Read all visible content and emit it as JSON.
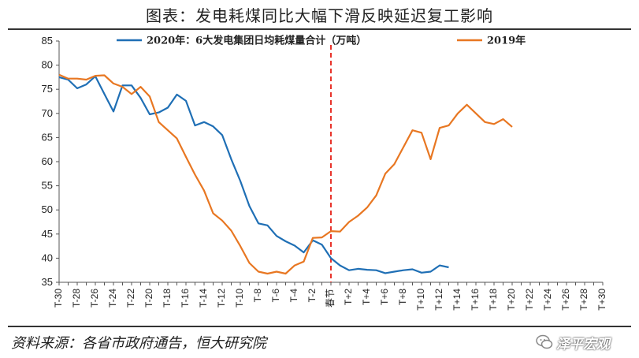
{
  "header": {
    "title": "图表：发电耗煤同比大幅下滑反映延迟复工影响"
  },
  "footer": {
    "source": "资料来源：各省市政府通告，恒大研究院",
    "watermark": "泽平宏观"
  },
  "colors": {
    "series_2020": "#1f6fb5",
    "series_2019": "#e87722",
    "marker": "#e8342b",
    "axis": "#555555"
  },
  "chart_data": {
    "type": "line",
    "ylim": [
      35,
      85
    ],
    "yticks": [
      35,
      40,
      45,
      50,
      55,
      60,
      65,
      70,
      75,
      80,
      85
    ],
    "grid": false,
    "legend_placement": "top",
    "x": [
      "T-30",
      "T-29",
      "T-28",
      "T-27",
      "T-26",
      "T-25",
      "T-24",
      "T-23",
      "T-22",
      "T-21",
      "T-20",
      "T-19",
      "T-18",
      "T-17",
      "T-16",
      "T-15",
      "T-14",
      "T-13",
      "T-12",
      "T-11",
      "T-10",
      "T-9",
      "T-8",
      "T-7",
      "T-6",
      "T-5",
      "T-4",
      "T-3",
      "T-2",
      "T-1",
      "春节",
      "T+1",
      "T+2",
      "T+3",
      "T+4",
      "T+5",
      "T+6",
      "T+7",
      "T+8",
      "T+9",
      "T+10",
      "T+11",
      "T+12",
      "T+13",
      "T+14",
      "T+15",
      "T+16",
      "T+17",
      "T+18",
      "T+19",
      "T+20",
      "T+21",
      "T+22",
      "T+23",
      "T+24",
      "T+25",
      "T+26",
      "T+27",
      "T+28",
      "T+29",
      "T+30"
    ],
    "xtick_labels": [
      "T-30",
      "T-28",
      "T-26",
      "T-24",
      "T-22",
      "T-20",
      "T-18",
      "T-16",
      "T-14",
      "T-12",
      "T-10",
      "T-8",
      "T-6",
      "T-4",
      "T-2",
      "春节",
      "T+2",
      "T+4",
      "T+6",
      "T+8",
      "T+10",
      "T+12",
      "T+14",
      "T+16",
      "T+18",
      "T+20",
      "T+22",
      "T+24",
      "T+26",
      "T+28",
      "T+30"
    ],
    "marker_category": "春节",
    "series": [
      {
        "name": "2020年：6大发电集团日均耗煤量合计（万吨）",
        "color": "#1f6fb5",
        "values": [
          77.5,
          77,
          75.2,
          76,
          77.7,
          74,
          70.4,
          75.8,
          75.8,
          73.2,
          69.8,
          70.2,
          71.2,
          73.9,
          72.6,
          67.5,
          68.2,
          67.3,
          65.5,
          60.5,
          56,
          50.8,
          47.2,
          46.8,
          44.6,
          43.5,
          42.6,
          41.2,
          43.7,
          42.8,
          40,
          38.5,
          37.5,
          37.8,
          37.6,
          37.5,
          36.9,
          37.2,
          37.5,
          37.7,
          37,
          37.2,
          38.5,
          38.1,
          null,
          null,
          null,
          null,
          null,
          null,
          null,
          null,
          null,
          null,
          null,
          null,
          null,
          null,
          null,
          null,
          null
        ]
      },
      {
        "name": "2019年",
        "color": "#e87722",
        "values": [
          78,
          77.2,
          77.2,
          77,
          77.8,
          77.9,
          76.2,
          75.5,
          74,
          75.5,
          73.5,
          68.2,
          66.5,
          64.8,
          61,
          57.3,
          54,
          49.3,
          47.8,
          45.7,
          42.5,
          39,
          37.2,
          36.8,
          37.2,
          36.8,
          38.5,
          39.3,
          44.2,
          44.3,
          45.6,
          45.5,
          47.5,
          48.8,
          50.5,
          53,
          57.5,
          59.5,
          63,
          66.5,
          66,
          60.5,
          67,
          67.5,
          70,
          71.8,
          70,
          68.2,
          67.8,
          68.8,
          67.2,
          null,
          null,
          null,
          null,
          null,
          null,
          null,
          null,
          null,
          null
        ]
      }
    ]
  }
}
